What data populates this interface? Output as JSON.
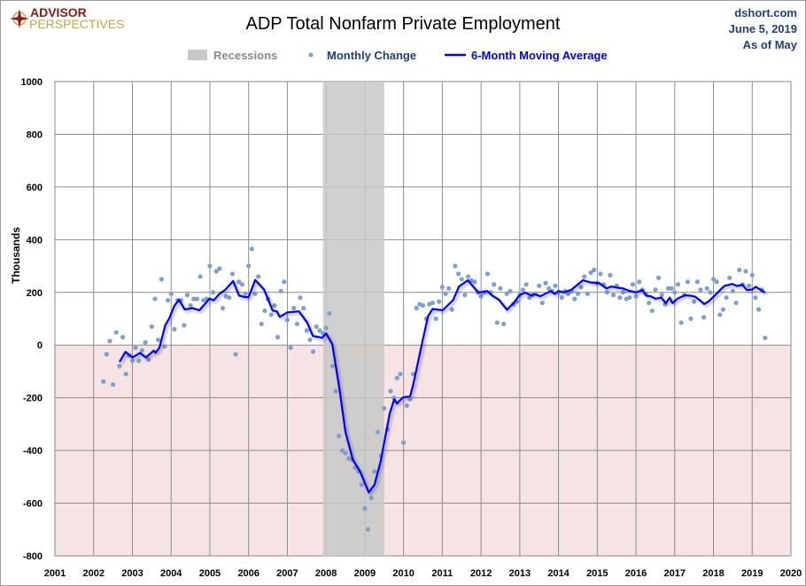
{
  "logo": {
    "line1": "ADVISOR",
    "line2": "PERSPECTIVES"
  },
  "source": {
    "site": "dshort.com",
    "date": "June 5, 2019",
    "as_of": "As of May"
  },
  "colors": {
    "recession": "#c8c8c8",
    "negative_zone": "#f6e3e3",
    "scatter": "#7da1cc",
    "ma_line": "#0000ff",
    "grid": "#8c8c8c",
    "source_text": "#1f3f7a",
    "logo_red": "#8b1a1a",
    "logo_gold": "#c9a24a"
  },
  "chart_data": {
    "type": "line",
    "title": "ADP Total Nonfarm Private Employment",
    "xlabel": "",
    "ylabel": "Thousands",
    "xlim": [
      2001,
      2020
    ],
    "ylim": [
      -800,
      1000
    ],
    "x_ticks": [
      "2001",
      "2002",
      "2003",
      "2004",
      "2005",
      "2006",
      "2007",
      "2008",
      "2009",
      "2010",
      "2011",
      "2012",
      "2013",
      "2014",
      "2015",
      "2016",
      "2017",
      "2018",
      "2019",
      "2020"
    ],
    "y_ticks": [
      "1000",
      "800",
      "600",
      "400",
      "200",
      "0",
      "-200",
      "-400",
      "-600",
      "-800"
    ],
    "grid": true,
    "legend_position": "top-center",
    "legend": {
      "recessions": "Recessions",
      "monthly": "Monthly Change",
      "ma": "6-Month Moving Average"
    },
    "recessions": [
      [
        2007.92,
        2009.5
      ]
    ],
    "monthly_change": {
      "start": "2002-04",
      "frequency": "monthly",
      "values": [
        -138,
        -35,
        15,
        -150,
        48,
        -80,
        30,
        -110,
        -40,
        -60,
        -10,
        -60,
        -20,
        10,
        -55,
        70,
        175,
        20,
        250,
        -5,
        170,
        195,
        60,
        170,
        170,
        75,
        190,
        150,
        175,
        175,
        260,
        170,
        175,
        300,
        200,
        280,
        290,
        140,
        185,
        180,
        270,
        -35,
        240,
        230,
        195,
        300,
        365,
        195,
        260,
        80,
        130,
        175,
        115,
        150,
        30,
        205,
        240,
        95,
        -10,
        140,
        80,
        180,
        140,
        55,
        20,
        -25,
        70,
        55,
        45,
        65,
        120,
        -80,
        -175,
        -345,
        -400,
        -410,
        -430,
        -435,
        -465,
        -480,
        -530,
        -620,
        -700,
        -580,
        -480,
        -330,
        -420,
        -240,
        -320,
        -175,
        -200,
        -125,
        -110,
        -370,
        -230,
        -205,
        -110,
        140,
        155,
        150,
        100,
        155,
        160,
        100,
        165,
        220,
        195,
        215,
        135,
        300,
        270,
        250,
        190,
        260,
        245,
        240,
        200,
        185,
        200,
        270,
        200,
        230,
        85,
        215,
        80,
        195,
        205,
        155,
        165,
        190,
        210,
        230,
        180,
        190,
        195,
        225,
        160,
        235,
        215,
        205,
        225,
        200,
        180,
        205,
        195,
        205,
        175,
        195,
        220,
        260,
        195,
        275,
        285,
        235,
        270,
        230,
        200,
        265,
        190,
        225,
        180,
        200,
        175,
        180,
        230,
        185,
        240,
        210,
        195,
        160,
        130,
        210,
        255,
        190,
        155,
        215,
        215,
        200,
        230,
        85,
        190,
        240,
        100,
        165,
        240,
        210,
        105,
        215,
        200,
        250,
        240,
        115,
        135,
        180,
        255,
        205,
        160,
        285,
        230,
        280,
        225,
        265,
        180,
        135,
        210,
        27
      ]
    },
    "moving_average": [
      [
        2002.67,
        -64
      ],
      [
        2002.82,
        -26
      ],
      [
        2003.0,
        -47
      ],
      [
        2003.2,
        -30
      ],
      [
        2003.35,
        -47
      ],
      [
        2003.55,
        -21
      ],
      [
        2003.6,
        -30
      ],
      [
        2003.7,
        -9
      ],
      [
        2003.85,
        75
      ],
      [
        2003.96,
        104
      ],
      [
        2004.08,
        148
      ],
      [
        2004.2,
        172
      ],
      [
        2004.35,
        135
      ],
      [
        2004.55,
        140
      ],
      [
        2004.73,
        132
      ],
      [
        2004.99,
        176
      ],
      [
        2005.1,
        170
      ],
      [
        2005.25,
        195
      ],
      [
        2005.4,
        210
      ],
      [
        2005.6,
        243
      ],
      [
        2005.75,
        188
      ],
      [
        2005.9,
        182
      ],
      [
        2006.0,
        182
      ],
      [
        2006.17,
        247
      ],
      [
        2006.4,
        210
      ],
      [
        2006.62,
        131
      ],
      [
        2006.73,
        128
      ],
      [
        2006.8,
        107
      ],
      [
        2007.0,
        124
      ],
      [
        2007.15,
        126
      ],
      [
        2007.3,
        128
      ],
      [
        2007.51,
        86
      ],
      [
        2007.66,
        34
      ],
      [
        2007.9,
        28
      ],
      [
        2008.0,
        44
      ],
      [
        2008.16,
        3
      ],
      [
        2008.35,
        -172
      ],
      [
        2008.5,
        -329
      ],
      [
        2008.69,
        -435
      ],
      [
        2008.88,
        -480
      ],
      [
        2009.1,
        -559
      ],
      [
        2009.25,
        -530
      ],
      [
        2009.41,
        -441
      ],
      [
        2009.64,
        -261
      ],
      [
        2009.76,
        -205
      ],
      [
        2009.83,
        -222
      ],
      [
        2009.98,
        -199
      ],
      [
        2010.17,
        -194
      ],
      [
        2010.25,
        -149
      ],
      [
        2010.48,
        8
      ],
      [
        2010.63,
        109
      ],
      [
        2010.75,
        137
      ],
      [
        2011.01,
        132
      ],
      [
        2011.28,
        171
      ],
      [
        2011.43,
        222
      ],
      [
        2011.66,
        246
      ],
      [
        2011.93,
        199
      ],
      [
        2012.16,
        205
      ],
      [
        2012.27,
        190
      ],
      [
        2012.46,
        172
      ],
      [
        2012.67,
        134
      ],
      [
        2012.84,
        160
      ],
      [
        2013.0,
        190
      ],
      [
        2013.14,
        199
      ],
      [
        2013.3,
        188
      ],
      [
        2013.38,
        193
      ],
      [
        2013.53,
        185
      ],
      [
        2013.8,
        205
      ],
      [
        2013.9,
        194
      ],
      [
        2014.0,
        205
      ],
      [
        2014.14,
        200
      ],
      [
        2014.33,
        210
      ],
      [
        2014.45,
        224
      ],
      [
        2014.63,
        246
      ],
      [
        2014.82,
        238
      ],
      [
        2015.05,
        235
      ],
      [
        2015.24,
        215
      ],
      [
        2015.36,
        222
      ],
      [
        2015.51,
        218
      ],
      [
        2015.66,
        215
      ],
      [
        2015.8,
        207
      ],
      [
        2016.0,
        200
      ],
      [
        2016.16,
        209
      ],
      [
        2016.27,
        187
      ],
      [
        2016.38,
        185
      ],
      [
        2016.5,
        176
      ],
      [
        2016.65,
        180
      ],
      [
        2016.77,
        159
      ],
      [
        2016.87,
        180
      ],
      [
        2016.94,
        159
      ],
      [
        2017.07,
        176
      ],
      [
        2017.26,
        189
      ],
      [
        2017.42,
        187
      ],
      [
        2017.53,
        183
      ],
      [
        2017.65,
        170
      ],
      [
        2017.76,
        156
      ],
      [
        2017.87,
        165
      ],
      [
        2018.03,
        187
      ],
      [
        2018.18,
        210
      ],
      [
        2018.28,
        224
      ],
      [
        2018.48,
        232
      ],
      [
        2018.62,
        224
      ],
      [
        2018.75,
        229
      ],
      [
        2018.86,
        209
      ],
      [
        2019.0,
        211
      ],
      [
        2019.09,
        221
      ],
      [
        2019.2,
        211
      ],
      [
        2019.33,
        199
      ]
    ]
  }
}
